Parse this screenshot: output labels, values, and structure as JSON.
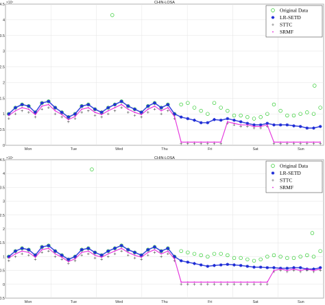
{
  "chart_data": [
    {
      "type": "scatter",
      "title": "CHIN-LOSA",
      "exponent_label": "×10⁷",
      "ylim": [
        0,
        4.5
      ],
      "yticks": [
        "0",
        "0.5",
        "1",
        "1.5",
        "2",
        "2.5",
        "3",
        "3.5",
        "4",
        "4.5"
      ],
      "xlim": [
        0,
        7
      ],
      "categories": [
        "Mon",
        "Tue",
        "Wed",
        "Thu",
        "Fri",
        "Sat",
        "Sun"
      ],
      "grid": true,
      "legend_position": "top-right",
      "outlier_points": [
        {
          "x": 2.35,
          "y": 4.15
        },
        {
          "x": 6.8,
          "y": 1.9
        }
      ],
      "series": [
        {
          "name": "Original Data",
          "marker": "circle",
          "color": "#2ecc2e",
          "values": [
            1.0,
            1.2,
            1.3,
            1.25,
            1.05,
            1.35,
            1.4,
            1.2,
            1.05,
            0.9,
            1.0,
            1.25,
            1.3,
            1.15,
            1.05,
            1.2,
            1.3,
            1.4,
            1.25,
            1.15,
            1.05,
            1.25,
            1.35,
            1.2,
            1.3,
            1.0,
            1.3,
            1.35,
            1.2,
            1.1,
            1.0,
            1.35,
            1.2,
            1.1,
            0.95,
            0.95,
            0.9,
            0.85,
            0.9,
            1.0,
            1.3,
            1.1,
            0.95,
            0.95,
            1.0,
            1.05,
            1.0,
            1.2
          ]
        },
        {
          "name": "LR-SETD",
          "marker": "star",
          "color": "#1c2bd6",
          "values": [
            1.0,
            1.2,
            1.3,
            1.25,
            1.05,
            1.35,
            1.4,
            1.2,
            1.05,
            0.9,
            1.0,
            1.25,
            1.3,
            1.15,
            1.05,
            1.2,
            1.3,
            1.4,
            1.25,
            1.15,
            1.05,
            1.25,
            1.35,
            1.2,
            1.3,
            1.0,
            0.9,
            0.85,
            0.8,
            0.72,
            0.72,
            0.82,
            0.8,
            0.85,
            0.8,
            0.75,
            0.7,
            0.65,
            0.65,
            0.7,
            0.65,
            0.65,
            0.65,
            0.62,
            0.6,
            0.55,
            0.55,
            0.6
          ]
        },
        {
          "name": "STTC",
          "marker": "plus",
          "color": "#555555",
          "values": [
            0.85,
            1.0,
            1.1,
            1.05,
            0.9,
            1.15,
            1.2,
            1.0,
            0.9,
            0.75,
            0.85,
            1.05,
            1.1,
            0.95,
            0.9,
            1.0,
            1.1,
            1.2,
            1.05,
            0.95,
            0.9,
            1.05,
            1.15,
            1.0,
            1.1,
            0.85,
            0.05,
            0.05,
            0.05,
            0.05,
            0.05,
            0.05,
            0.05,
            0.7,
            0.65,
            0.6,
            0.6,
            0.55,
            0.55,
            0.6,
            0.05,
            0.05,
            0.05,
            0.05,
            0.05,
            0.05,
            0.05,
            0.05
          ]
        },
        {
          "name": "SRMF",
          "marker": "dot",
          "color": "#e01ad8",
          "values": [
            0.95,
            1.1,
            1.2,
            1.15,
            0.98,
            1.25,
            1.3,
            1.1,
            0.98,
            0.82,
            0.92,
            1.15,
            1.2,
            1.05,
            0.98,
            1.1,
            1.2,
            1.3,
            1.15,
            1.05,
            0.98,
            1.15,
            1.25,
            1.1,
            1.2,
            0.92,
            0.1,
            0.1,
            0.1,
            0.1,
            0.1,
            0.1,
            0.1,
            0.75,
            0.7,
            0.65,
            0.65,
            0.6,
            0.6,
            0.65,
            0.1,
            0.1,
            0.1,
            0.1,
            0.1,
            0.1,
            0.1,
            0.1
          ]
        }
      ]
    },
    {
      "type": "scatter",
      "title": "CHIN-LOSA",
      "exponent_label": "×10⁷",
      "ylim": [
        -0.5,
        4.5
      ],
      "yticks": [
        "-0.5",
        "0",
        "0.5",
        "1",
        "1.5",
        "2",
        "2.5",
        "3",
        "3.5",
        "4",
        "4.5"
      ],
      "xlim": [
        0,
        7
      ],
      "categories": [
        "Mon",
        "Tue",
        "Wed",
        "Thu",
        "Fri",
        "Sat",
        "Sun"
      ],
      "grid": true,
      "legend_position": "top-right",
      "outlier_points": [
        {
          "x": 1.9,
          "y": 4.15
        },
        {
          "x": 6.75,
          "y": 1.85
        }
      ],
      "series": [
        {
          "name": "Original Data",
          "marker": "circle",
          "color": "#2ecc2e",
          "values": [
            1.0,
            1.2,
            1.3,
            1.25,
            1.05,
            1.35,
            1.4,
            1.2,
            1.05,
            0.9,
            1.0,
            1.25,
            1.3,
            1.15,
            1.05,
            1.2,
            1.3,
            1.4,
            1.25,
            1.15,
            1.05,
            1.25,
            1.35,
            1.2,
            1.3,
            1.0,
            1.2,
            1.15,
            1.1,
            1.05,
            1.0,
            1.1,
            1.1,
            1.05,
            0.95,
            0.95,
            0.9,
            0.85,
            0.9,
            1.0,
            1.05,
            1.0,
            0.95,
            0.95,
            1.0,
            1.05,
            1.0,
            1.2
          ]
        },
        {
          "name": "LR-SETD",
          "marker": "star",
          "color": "#1c2bd6",
          "values": [
            1.0,
            1.2,
            1.3,
            1.25,
            1.05,
            1.35,
            1.4,
            1.2,
            1.05,
            0.9,
            1.0,
            1.25,
            1.3,
            1.15,
            1.05,
            1.2,
            1.3,
            1.4,
            1.25,
            1.15,
            1.05,
            1.25,
            1.35,
            1.2,
            1.3,
            1.0,
            0.85,
            0.8,
            0.75,
            0.7,
            0.65,
            0.68,
            0.7,
            0.72,
            0.7,
            0.68,
            0.65,
            0.62,
            0.62,
            0.6,
            0.6,
            0.58,
            0.58,
            0.6,
            0.6,
            0.55,
            0.55,
            0.6
          ]
        },
        {
          "name": "STTC",
          "marker": "plus",
          "color": "#555555",
          "values": [
            0.85,
            1.0,
            1.1,
            1.05,
            0.9,
            1.15,
            1.2,
            1.0,
            0.9,
            0.75,
            0.85,
            1.05,
            1.1,
            0.95,
            0.9,
            1.0,
            1.1,
            1.2,
            1.05,
            0.95,
            0.9,
            1.05,
            1.15,
            1.0,
            1.1,
            0.85,
            0.0,
            0.0,
            0.0,
            0.0,
            0.0,
            0.0,
            0.0,
            0.0,
            0.0,
            0.0,
            0.0,
            0.0,
            0.0,
            0.0,
            0.45,
            0.5,
            0.45,
            0.5,
            0.45,
            0.5,
            0.45,
            0.5
          ]
        },
        {
          "name": "SRMF",
          "marker": "dot",
          "color": "#e01ad8",
          "values": [
            0.95,
            1.1,
            1.2,
            1.15,
            0.98,
            1.25,
            1.3,
            1.1,
            0.98,
            0.82,
            0.92,
            1.15,
            1.2,
            1.05,
            0.98,
            1.1,
            1.2,
            1.3,
            1.15,
            1.05,
            0.98,
            1.15,
            1.25,
            1.1,
            1.2,
            0.92,
            0.08,
            0.08,
            0.08,
            0.08,
            0.08,
            0.08,
            0.08,
            0.08,
            0.08,
            0.08,
            0.08,
            0.08,
            0.08,
            0.08,
            0.5,
            0.55,
            0.5,
            0.55,
            0.5,
            0.55,
            0.5,
            0.55
          ]
        }
      ]
    }
  ]
}
